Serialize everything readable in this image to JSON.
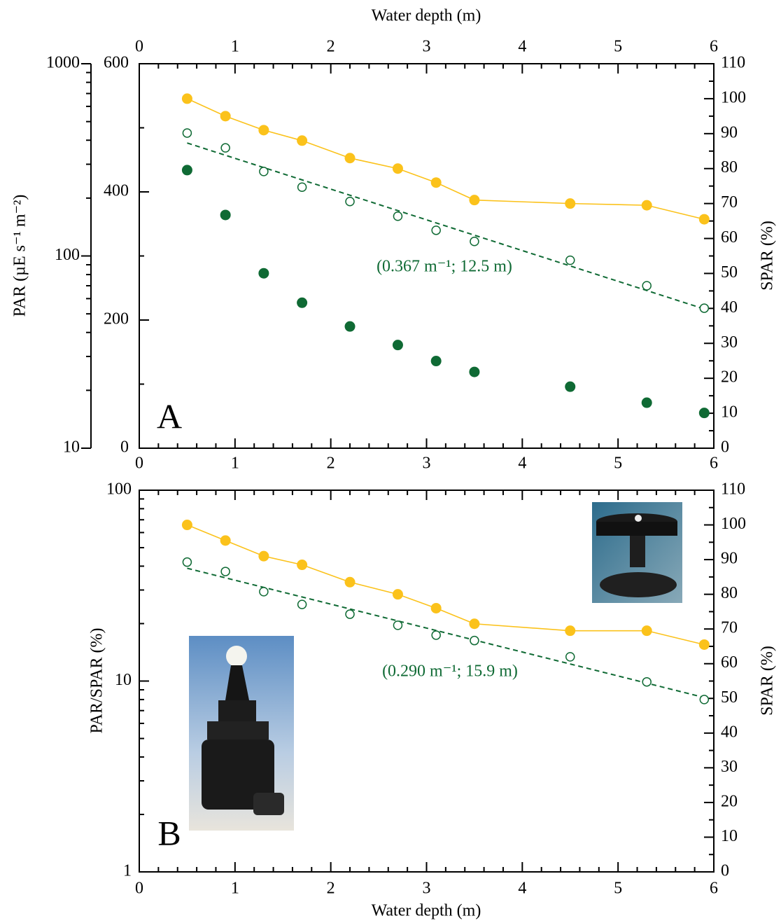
{
  "chart_data": [
    {
      "type": "scatter",
      "panel_label": "A",
      "xlabel": "Water depth (m)",
      "ylabel": "PAR (µE s⁻¹ m⁻²)",
      "y2label": "SPAR (%)",
      "annotation": "(0.367 m⁻¹; 12.5 m)",
      "x": [
        0.5,
        0.9,
        1.3,
        1.7,
        2.2,
        2.7,
        3.1,
        3.5,
        4.5,
        5.3,
        5.9
      ],
      "xlim": [
        0,
        6
      ],
      "xticks": [
        0,
        1,
        2,
        3,
        4,
        5,
        6
      ],
      "ylim": [
        10,
        1000
      ],
      "yticks": [
        10,
        100,
        1000
      ],
      "ylog": true,
      "y_inner_lim": [
        0,
        600
      ],
      "y_inner_ticks": [
        0,
        200,
        400,
        600
      ],
      "y2lim": [
        0,
        110
      ],
      "y2ticks": [
        0,
        10,
        20,
        30,
        40,
        50,
        60,
        70,
        80,
        90,
        100,
        110
      ],
      "series": [
        {
          "color": "#fbc21b",
          "axis": "y2",
          "marker": "filled",
          "line": true,
          "values": [
            100,
            95,
            91,
            88,
            83,
            80,
            76,
            71,
            70,
            69.5,
            65.5
          ]
        },
        {
          "color": "#0f6a34",
          "axis": "y_inner",
          "marker": "filled",
          "line": false,
          "values": [
            434,
            364,
            273,
            227,
            190,
            161,
            136,
            119,
            96,
            71,
            55
          ]
        },
        {
          "color": "#0f6a34",
          "axis": "y",
          "marker": "open",
          "line": false,
          "values": [
            436,
            365,
            275,
            228,
            192,
            161,
            136,
            119,
            95,
            70,
            53.5
          ]
        }
      ],
      "fit": {
        "color": "#0f6a34",
        "axis": "y",
        "x": [
          0.5,
          5.9
        ],
        "values": [
          387,
          53
        ]
      }
    },
    {
      "type": "scatter",
      "panel_label": "B",
      "xlabel": "Water depth (m)",
      "ylabel": "PAR/SPAR (%)",
      "y2label": "SPAR (%)",
      "annotation": "(0.290 m⁻¹; 15.9 m)",
      "x": [
        0.5,
        0.9,
        1.3,
        1.7,
        2.2,
        2.7,
        3.1,
        3.5,
        4.5,
        5.3,
        5.9
      ],
      "xlim": [
        0,
        6
      ],
      "xticks": [
        0,
        1,
        2,
        3,
        4,
        5,
        6
      ],
      "ylim": [
        1,
        100
      ],
      "yticks": [
        1,
        10,
        100
      ],
      "ylog": true,
      "y2lim": [
        0,
        110
      ],
      "y2ticks": [
        0,
        10,
        20,
        30,
        40,
        50,
        60,
        70,
        80,
        90,
        100,
        110
      ],
      "series": [
        {
          "color": "#fbc21b",
          "axis": "y2",
          "marker": "filled",
          "line": true,
          "values": [
            100,
            95.5,
            91,
            88.5,
            83.5,
            80,
            76,
            71.5,
            69.5,
            69.5,
            65.5
          ]
        },
        {
          "color": "#0f6a34",
          "axis": "y",
          "marker": "open",
          "line": false,
          "values": [
            42,
            37.5,
            29.4,
            25.2,
            22.4,
            19.6,
            17.4,
            16.3,
            13.4,
            9.9,
            8
          ]
        }
      ],
      "fit": {
        "color": "#0f6a34",
        "axis": "y",
        "x": [
          0.5,
          5.9
        ],
        "values": [
          39,
          8.2
        ]
      }
    }
  ]
}
